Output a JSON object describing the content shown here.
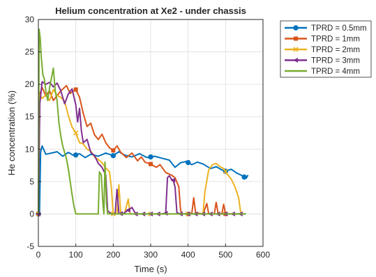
{
  "chart_data": {
    "type": "line",
    "title": "Helium concentration at Xe2 - under chassis",
    "xlabel": "Time (s)",
    "ylabel": "He concentration (%)",
    "xlim": [
      0,
      600
    ],
    "ylim": [
      -5,
      30
    ],
    "xticks": [
      0,
      100,
      200,
      300,
      400,
      500,
      600
    ],
    "yticks": [
      -5,
      0,
      5,
      10,
      15,
      20,
      25,
      30
    ],
    "grid": true,
    "legend_position": "outside-top-right",
    "series": [
      {
        "name": "TPRD = 0.5mm",
        "color": "#0072BD",
        "marker": "circle",
        "points": [
          [
            0,
            0
          ],
          [
            3,
            0
          ],
          [
            6,
            9.5
          ],
          [
            10,
            10.5
          ],
          [
            20,
            9.2
          ],
          [
            35,
            9.4
          ],
          [
            50,
            9.6
          ],
          [
            65,
            8.9
          ],
          [
            80,
            9.5
          ],
          [
            95,
            9.0
          ],
          [
            110,
            9.3
          ],
          [
            125,
            8.7
          ],
          [
            140,
            9.2
          ],
          [
            160,
            8.9
          ],
          [
            180,
            9.4
          ],
          [
            200,
            9.0
          ],
          [
            215,
            9.6
          ],
          [
            230,
            9.1
          ],
          [
            250,
            8.8
          ],
          [
            270,
            9.3
          ],
          [
            290,
            8.7
          ],
          [
            310,
            8.9
          ],
          [
            330,
            8.6
          ],
          [
            350,
            8.3
          ],
          [
            365,
            7.2
          ],
          [
            380,
            7.9
          ],
          [
            395,
            8.1
          ],
          [
            410,
            7.6
          ],
          [
            425,
            8.0
          ],
          [
            440,
            7.7
          ],
          [
            460,
            7.0
          ],
          [
            475,
            7.3
          ],
          [
            490,
            6.8
          ],
          [
            500,
            6.6
          ],
          [
            515,
            6.9
          ],
          [
            530,
            6.3
          ],
          [
            545,
            5.9
          ],
          [
            555,
            5.5
          ],
          [
            560,
            6.0
          ]
        ],
        "marker_at": [
          0,
          100,
          200,
          300,
          400,
          500,
          550
        ]
      },
      {
        "name": "TPRD = 1mm",
        "color": "#D95319",
        "marker": "square",
        "points": [
          [
            0,
            0
          ],
          [
            4,
            18.5
          ],
          [
            10,
            19.5
          ],
          [
            20,
            18.2
          ],
          [
            30,
            19.0
          ],
          [
            40,
            17.5
          ],
          [
            60,
            19.0
          ],
          [
            75,
            19.8
          ],
          [
            85,
            18.6
          ],
          [
            100,
            19.2
          ],
          [
            110,
            18.0
          ],
          [
            120,
            15.5
          ],
          [
            130,
            13.5
          ],
          [
            140,
            14.0
          ],
          [
            150,
            12.2
          ],
          [
            160,
            11.5
          ],
          [
            170,
            12.3
          ],
          [
            180,
            11.0
          ],
          [
            190,
            10.2
          ],
          [
            200,
            9.8
          ],
          [
            210,
            10.5
          ],
          [
            220,
            9.5
          ],
          [
            235,
            8.7
          ],
          [
            250,
            9.4
          ],
          [
            265,
            8.2
          ],
          [
            275,
            8.8
          ],
          [
            285,
            8.0
          ],
          [
            300,
            7.7
          ],
          [
            315,
            7.2
          ],
          [
            325,
            7.6
          ],
          [
            340,
            6.4
          ],
          [
            355,
            6.0
          ],
          [
            365,
            5.6
          ],
          [
            375,
            4.2
          ],
          [
            380,
            0.5
          ],
          [
            385,
            0
          ],
          [
            400,
            0
          ],
          [
            410,
            0.1
          ],
          [
            415,
            2.5
          ],
          [
            420,
            0.2
          ],
          [
            440,
            0
          ],
          [
            450,
            1.6
          ],
          [
            455,
            0
          ],
          [
            470,
            0
          ],
          [
            475,
            1.8
          ],
          [
            480,
            0.1
          ],
          [
            490,
            0
          ],
          [
            495,
            1.5
          ],
          [
            500,
            0
          ],
          [
            520,
            0
          ],
          [
            550,
            0
          ]
        ],
        "marker_at": [
          0,
          100,
          200,
          300,
          400,
          500
        ]
      },
      {
        "name": "TPRD = 2mm",
        "color": "#EDB120",
        "marker": "x",
        "points": [
          [
            0,
            0
          ],
          [
            3,
            18.5
          ],
          [
            10,
            17.8
          ],
          [
            20,
            18.4
          ],
          [
            30,
            17.5
          ],
          [
            40,
            19.2
          ],
          [
            50,
            18.3
          ],
          [
            60,
            18.0
          ],
          [
            70,
            17.4
          ],
          [
            80,
            15.2
          ],
          [
            90,
            13.4
          ],
          [
            100,
            12.5
          ],
          [
            110,
            11.0
          ],
          [
            120,
            10.8
          ],
          [
            130,
            10.0
          ],
          [
            140,
            9.7
          ],
          [
            150,
            8.8
          ],
          [
            160,
            8.4
          ],
          [
            170,
            7.9
          ],
          [
            180,
            7.1
          ],
          [
            190,
            6.5
          ],
          [
            195,
            4.0
          ],
          [
            200,
            0
          ],
          [
            210,
            0
          ],
          [
            215,
            4.5
          ],
          [
            220,
            0.1
          ],
          [
            230,
            0
          ],
          [
            240,
            2.3
          ],
          [
            245,
            0
          ],
          [
            260,
            0
          ],
          [
            270,
            0
          ],
          [
            300,
            0
          ],
          [
            330,
            0
          ],
          [
            360,
            0
          ],
          [
            400,
            0
          ],
          [
            430,
            0
          ],
          [
            440,
            0.1
          ],
          [
            445,
            3.5
          ],
          [
            455,
            6.8
          ],
          [
            465,
            7.6
          ],
          [
            475,
            7.8
          ],
          [
            485,
            7.3
          ],
          [
            495,
            7.0
          ],
          [
            505,
            6.1
          ],
          [
            515,
            5.4
          ],
          [
            525,
            4.2
          ],
          [
            535,
            2.5
          ],
          [
            540,
            0.4
          ],
          [
            545,
            0
          ]
        ],
        "marker_at": [
          0,
          100,
          200,
          300,
          400,
          500
        ]
      },
      {
        "name": "TPRD = 3mm",
        "color": "#7E2F8E",
        "marker": "triangle-left",
        "points": [
          [
            0,
            0
          ],
          [
            4,
            17.0
          ],
          [
            10,
            20.4
          ],
          [
            20,
            20.0
          ],
          [
            30,
            20.3
          ],
          [
            40,
            19.6
          ],
          [
            50,
            20.2
          ],
          [
            60,
            19.0
          ],
          [
            70,
            17.0
          ],
          [
            80,
            18.5
          ],
          [
            90,
            19.3
          ],
          [
            100,
            16.8
          ],
          [
            105,
            14.2
          ],
          [
            110,
            16.3
          ],
          [
            115,
            12.8
          ],
          [
            120,
            11.0
          ],
          [
            130,
            11.5
          ],
          [
            140,
            9.5
          ],
          [
            150,
            9.0
          ],
          [
            160,
            7.8
          ],
          [
            170,
            7.2
          ],
          [
            180,
            6.0
          ],
          [
            185,
            0.5
          ],
          [
            195,
            0
          ],
          [
            205,
            0
          ],
          [
            210,
            3.8
          ],
          [
            215,
            0.1
          ],
          [
            225,
            0
          ],
          [
            250,
            1.0
          ],
          [
            260,
            0
          ],
          [
            300,
            0
          ],
          [
            320,
            0
          ],
          [
            330,
            0
          ],
          [
            340,
            0.1
          ],
          [
            345,
            5.6
          ],
          [
            350,
            5.9
          ],
          [
            355,
            5.4
          ],
          [
            360,
            5.2
          ],
          [
            365,
            4.2
          ],
          [
            370,
            0.2
          ],
          [
            380,
            0
          ],
          [
            400,
            0
          ],
          [
            450,
            0
          ],
          [
            500,
            0
          ],
          [
            550,
            0
          ]
        ],
        "marker_at": [
          0,
          220,
          240,
          260,
          280,
          300,
          320,
          340,
          360,
          380,
          400,
          420,
          440,
          460,
          480,
          500,
          520,
          540
        ]
      },
      {
        "name": "TPRD = 4mm",
        "color": "#77AC30",
        "marker": "none",
        "points": [
          [
            0,
            0
          ],
          [
            2,
            28.5
          ],
          [
            5,
            27.0
          ],
          [
            8,
            24.0
          ],
          [
            12,
            21.5
          ],
          [
            16,
            20.8
          ],
          [
            20,
            19.0
          ],
          [
            25,
            17.5
          ],
          [
            30,
            19.5
          ],
          [
            35,
            21.0
          ],
          [
            40,
            22.5
          ],
          [
            45,
            19.0
          ],
          [
            50,
            17.5
          ],
          [
            55,
            14.0
          ],
          [
            60,
            12.0
          ],
          [
            65,
            10.5
          ],
          [
            70,
            9.5
          ],
          [
            75,
            8.5
          ],
          [
            80,
            7.0
          ],
          [
            85,
            5.0
          ],
          [
            90,
            3.0
          ],
          [
            95,
            1.2
          ],
          [
            100,
            0
          ],
          [
            110,
            0
          ],
          [
            120,
            0
          ],
          [
            140,
            0
          ],
          [
            160,
            0
          ],
          [
            163,
            6.5
          ],
          [
            168,
            6.0
          ],
          [
            172,
            2.0
          ],
          [
            175,
            0
          ],
          [
            178,
            8.0
          ],
          [
            182,
            1.5
          ],
          [
            185,
            0
          ],
          [
            200,
            0
          ],
          [
            220,
            0
          ],
          [
            250,
            0
          ],
          [
            300,
            0
          ],
          [
            350,
            0
          ],
          [
            400,
            0
          ],
          [
            450,
            0
          ],
          [
            500,
            0
          ],
          [
            540,
            0
          ],
          [
            555,
            0
          ]
        ],
        "marker_at": []
      }
    ]
  }
}
